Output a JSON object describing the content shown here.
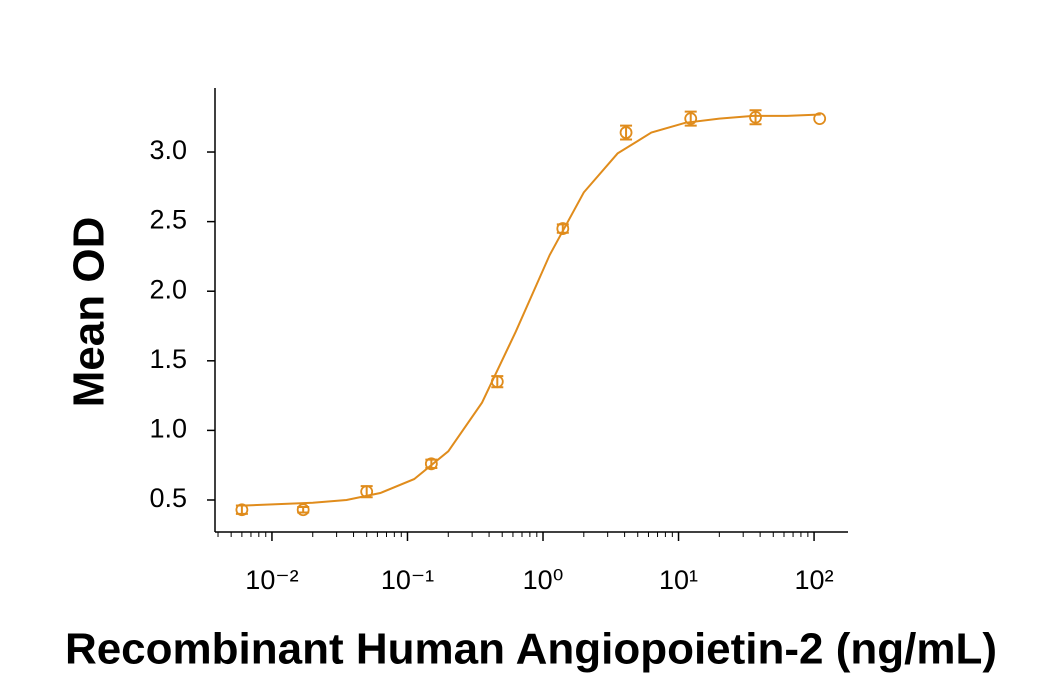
{
  "chart_data": {
    "type": "scatter",
    "x_label": "Recombinant Human Angiopoietin-2 (ng/mL)",
    "y_label": "Mean OD",
    "log_x": true,
    "color": "#e08c1c",
    "xlim": [
      0.0038,
      178
    ],
    "ylim": [
      0.27,
      3.46
    ],
    "xticks": [
      {
        "value": 0.01,
        "label": "10⁻²"
      },
      {
        "value": 0.1,
        "label": "10⁻¹"
      },
      {
        "value": 1,
        "label": "10⁰"
      },
      {
        "value": 10,
        "label": "10¹"
      },
      {
        "value": 100,
        "label": "10²"
      }
    ],
    "xminorticks": [
      0.004,
      0.005,
      0.006,
      0.007,
      0.008,
      0.009,
      0.02,
      0.03,
      0.04,
      0.05,
      0.06,
      0.07,
      0.08,
      0.09,
      0.2,
      0.3,
      0.4,
      0.5,
      0.6,
      0.7,
      0.8,
      0.9,
      2,
      3,
      4,
      5,
      6,
      7,
      8,
      9,
      20,
      30,
      40,
      50,
      60,
      70,
      80,
      90
    ],
    "yticks": [
      0.5,
      {
        "value": 1,
        "label": "1.0"
      },
      1.5,
      {
        "value": 2,
        "label": "2.0"
      },
      2.5,
      {
        "value": 3,
        "label": "3.0"
      }
    ],
    "series": [
      {
        "type": "scatter",
        "x": [
          0.006,
          0.017,
          0.05,
          0.15,
          0.46,
          1.4,
          4.1,
          12.3,
          37,
          110
        ],
        "values": [
          0.43,
          0.43,
          0.56,
          0.76,
          1.35,
          2.45,
          3.14,
          3.24,
          3.25,
          3.24
        ],
        "errors": [
          0.03,
          0.02,
          0.04,
          0.03,
          0.04,
          0.03,
          0.05,
          0.05,
          0.05,
          0
        ]
      },
      {
        "type": "line",
        "x": [
          0.0063,
          0.0112,
          0.02,
          0.0355,
          0.063,
          0.112,
          0.2,
          0.355,
          0.63,
          1.12,
          2,
          3.55,
          6.3,
          11.2,
          20,
          35.5,
          63,
          112
        ],
        "values": [
          0.46,
          0.47,
          0.48,
          0.5,
          0.55,
          0.65,
          0.85,
          1.2,
          1.71,
          2.26,
          2.71,
          2.99,
          3.14,
          3.21,
          3.24,
          3.26,
          3.26,
          3.27
        ]
      }
    ]
  }
}
